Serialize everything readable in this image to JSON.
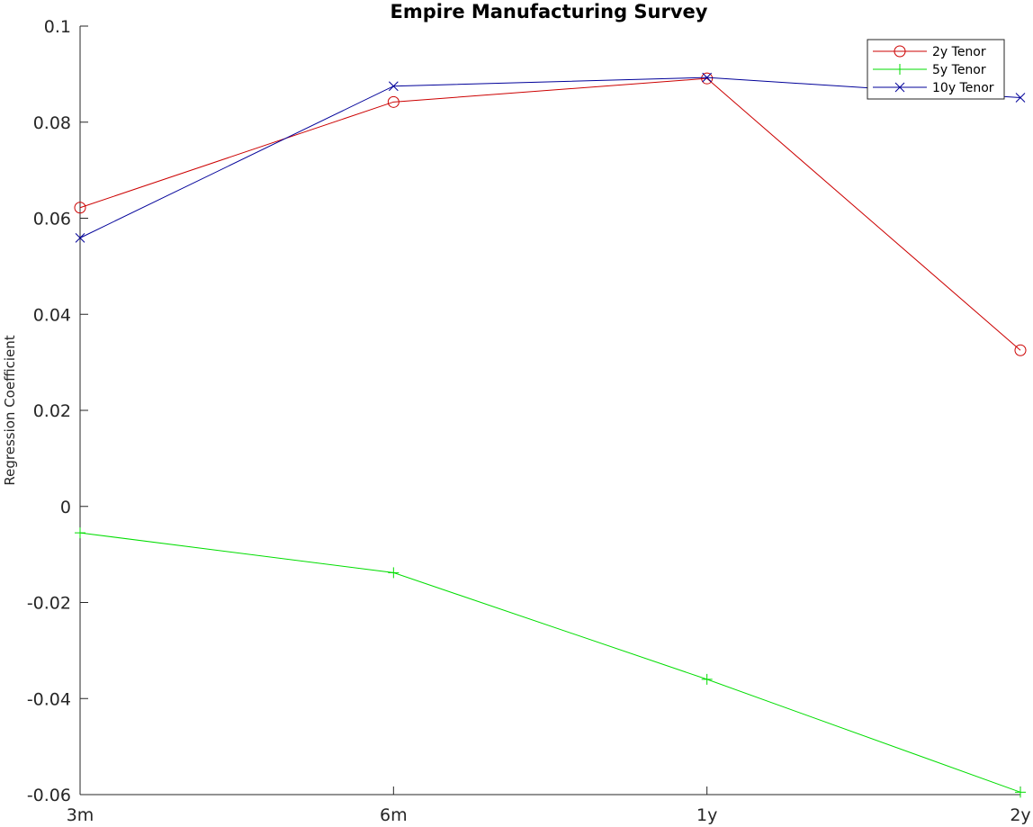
{
  "chart_data": {
    "type": "line",
    "title": "Empire Manufacturing Survey",
    "xlabel": "",
    "ylabel": "Regression Coefficient",
    "categories": [
      "3m",
      "6m",
      "1y",
      "2y"
    ],
    "ylim": [
      -0.06,
      0.1
    ],
    "yticks": [
      "-0.06",
      "-0.04",
      "-0.02",
      "0",
      "0.02",
      "0.04",
      "0.06",
      "0.08",
      "0.1"
    ],
    "ytick_values": [
      -0.06,
      -0.04,
      -0.02,
      0,
      0.02,
      0.04,
      0.06,
      0.08,
      0.1
    ],
    "grid": false,
    "legend_position": "top-right",
    "series": [
      {
        "name": "2y Tenor",
        "color": "#cc0000",
        "marker": "circle",
        "values": [
          0.0622,
          0.0842,
          0.0891,
          0.0325
        ]
      },
      {
        "name": "5y Tenor",
        "color": "#00dd00",
        "marker": "plus",
        "values": [
          -0.0055,
          -0.0138,
          -0.036,
          -0.0595
        ]
      },
      {
        "name": "10y Tenor",
        "color": "#000099",
        "marker": "x",
        "values": [
          0.0559,
          0.0875,
          0.0893,
          0.0851
        ]
      }
    ]
  }
}
